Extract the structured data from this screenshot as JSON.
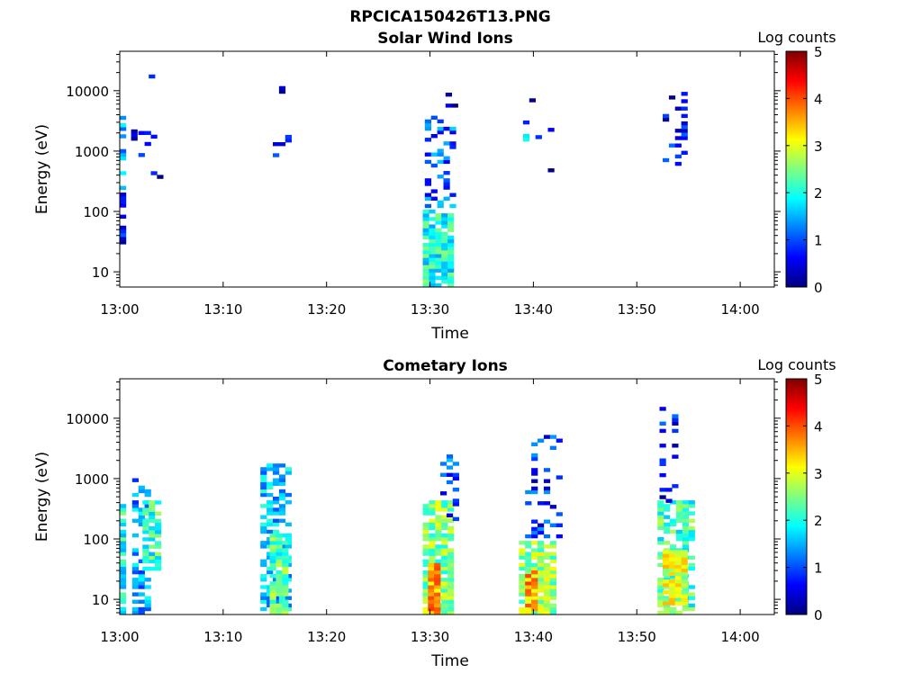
{
  "figure_title": "RPCICA150426T13.PNG",
  "colorbar_stops": [
    "#00007f",
    "#0000ff",
    "#007fff",
    "#00ffff",
    "#7fff7f",
    "#ffff00",
    "#ff7f00",
    "#ff0000",
    "#7f0000"
  ],
  "chart_data": [
    {
      "type": "heatmap",
      "title": "Solar Wind Ions",
      "xlabel": "Time",
      "ylabel": "Energy (eV)",
      "x_ticks": [
        "13:00",
        "13:10",
        "13:20",
        "13:30",
        "13:40",
        "13:50",
        "14:00"
      ],
      "x_range_minutes": [
        0,
        63.3
      ],
      "y_scale": "log",
      "y_ticks": [
        "10",
        "100",
        "1000",
        "10000"
      ],
      "y_range": [
        5.6,
        45000
      ],
      "colorbar_label": "Log counts",
      "colorbar_ticks": [
        "0",
        "1",
        "2",
        "3",
        "4",
        "5"
      ],
      "colorbar_range": [
        0,
        5
      ],
      "blobs": [
        {
          "t0": 0.0,
          "t1": 0.45,
          "e0": 200,
          "e1": 3500,
          "level": 1.4,
          "density": 0.5
        },
        {
          "t0": 0.0,
          "t1": 0.45,
          "e0": 25,
          "e1": 200,
          "level": 0.5,
          "density": 0.6
        },
        {
          "t0": 0.5,
          "t1": 1.2,
          "e0": 1500,
          "e1": 2500,
          "level": 0.4,
          "density": 0.25
        },
        {
          "t0": 1.8,
          "t1": 3.6,
          "e0": 700,
          "e1": 2500,
          "level": 0.6,
          "density": 0.25
        },
        {
          "t0": 3.0,
          "t1": 3.8,
          "e0": 350,
          "e1": 450,
          "level": 0.3,
          "density": 0.3
        },
        {
          "t0": 2.8,
          "t1": 3.2,
          "e0": 14000,
          "e1": 17000,
          "level": 0.4,
          "density": 0.6
        },
        {
          "t0": 14.8,
          "t1": 16.2,
          "e0": 800,
          "e1": 2200,
          "level": 0.7,
          "density": 0.3
        },
        {
          "t0": 14.8,
          "t1": 16.5,
          "e0": 9000,
          "e1": 12500,
          "level": 0.3,
          "density": 0.35
        },
        {
          "t0": 29.5,
          "t1": 32.3,
          "e0": 100,
          "e1": 3500,
          "level": 1.1,
          "density": 0.35
        },
        {
          "t0": 29.3,
          "t1": 32.1,
          "e0": 5.6,
          "e1": 100,
          "level": 2.0,
          "density": 0.85
        },
        {
          "t0": 31.5,
          "t1": 32.6,
          "e0": 4000,
          "e1": 9000,
          "level": 0.4,
          "density": 0.3
        },
        {
          "t0": 39.0,
          "t1": 39.5,
          "e0": 1100,
          "e1": 1800,
          "level": 1.6,
          "density": 0.6
        },
        {
          "t0": 39.0,
          "t1": 42.0,
          "e0": 450,
          "e1": 9000,
          "level": 0.3,
          "density": 0.08
        },
        {
          "t0": 52.5,
          "t1": 54.9,
          "e0": 500,
          "e1": 9000,
          "level": 0.6,
          "density": 0.2
        },
        {
          "t0": 52.3,
          "t1": 52.7,
          "e0": 14000,
          "e1": 17000,
          "level": 0.4,
          "density": 0.5
        }
      ]
    },
    {
      "type": "heatmap",
      "title": "Cometary Ions",
      "xlabel": "Time",
      "ylabel": "Energy (eV)",
      "x_ticks": [
        "13:00",
        "13:10",
        "13:20",
        "13:30",
        "13:40",
        "13:50",
        "14:00"
      ],
      "x_range_minutes": [
        0,
        63.3
      ],
      "y_scale": "log",
      "y_ticks": [
        "10",
        "100",
        "1000",
        "10000"
      ],
      "y_range": [
        5.6,
        45000
      ],
      "colorbar_label": "Log counts",
      "colorbar_ticks": [
        "0",
        "1",
        "2",
        "3",
        "4",
        "5"
      ],
      "colorbar_range": [
        0,
        5
      ],
      "blobs": [
        {
          "t0": 0.0,
          "t1": 0.5,
          "e0": 5.6,
          "e1": 350,
          "level": 2.0,
          "density": 0.8
        },
        {
          "t0": 1.2,
          "t1": 2.7,
          "e0": 5.6,
          "e1": 1000,
          "level": 1.4,
          "density": 0.45
        },
        {
          "t0": 2.2,
          "t1": 3.7,
          "e0": 30,
          "e1": 400,
          "level": 2.1,
          "density": 0.7
        },
        {
          "t0": 13.6,
          "t1": 16.1,
          "e0": 5.6,
          "e1": 1600,
          "level": 1.6,
          "density": 0.55
        },
        {
          "t0": 14.5,
          "t1": 16.0,
          "e0": 5.6,
          "e1": 120,
          "level": 2.3,
          "density": 0.85
        },
        {
          "t0": 29.3,
          "t1": 32.2,
          "e0": 5.6,
          "e1": 400,
          "level": 2.5,
          "density": 0.85
        },
        {
          "t0": 29.8,
          "t1": 31.0,
          "e0": 5.6,
          "e1": 40,
          "level": 3.6,
          "density": 0.95
        },
        {
          "t0": 31.0,
          "t1": 32.6,
          "e0": 200,
          "e1": 2400,
          "level": 1.0,
          "density": 0.3
        },
        {
          "t0": 38.6,
          "t1": 42.0,
          "e0": 5.6,
          "e1": 90,
          "level": 2.6,
          "density": 0.85
        },
        {
          "t0": 39.2,
          "t1": 40.3,
          "e0": 5.6,
          "e1": 30,
          "level": 3.5,
          "density": 0.9
        },
        {
          "t0": 39.2,
          "t1": 42.3,
          "e0": 90,
          "e1": 6000,
          "level": 0.8,
          "density": 0.2
        },
        {
          "t0": 52.0,
          "t1": 55.4,
          "e0": 5.6,
          "e1": 400,
          "level": 2.2,
          "density": 0.75
        },
        {
          "t0": 52.5,
          "t1": 54.5,
          "e0": 8,
          "e1": 60,
          "level": 2.9,
          "density": 0.85
        },
        {
          "t0": 52.2,
          "t1": 53.6,
          "e0": 400,
          "e1": 15000,
          "level": 0.6,
          "density": 0.18
        }
      ]
    }
  ]
}
